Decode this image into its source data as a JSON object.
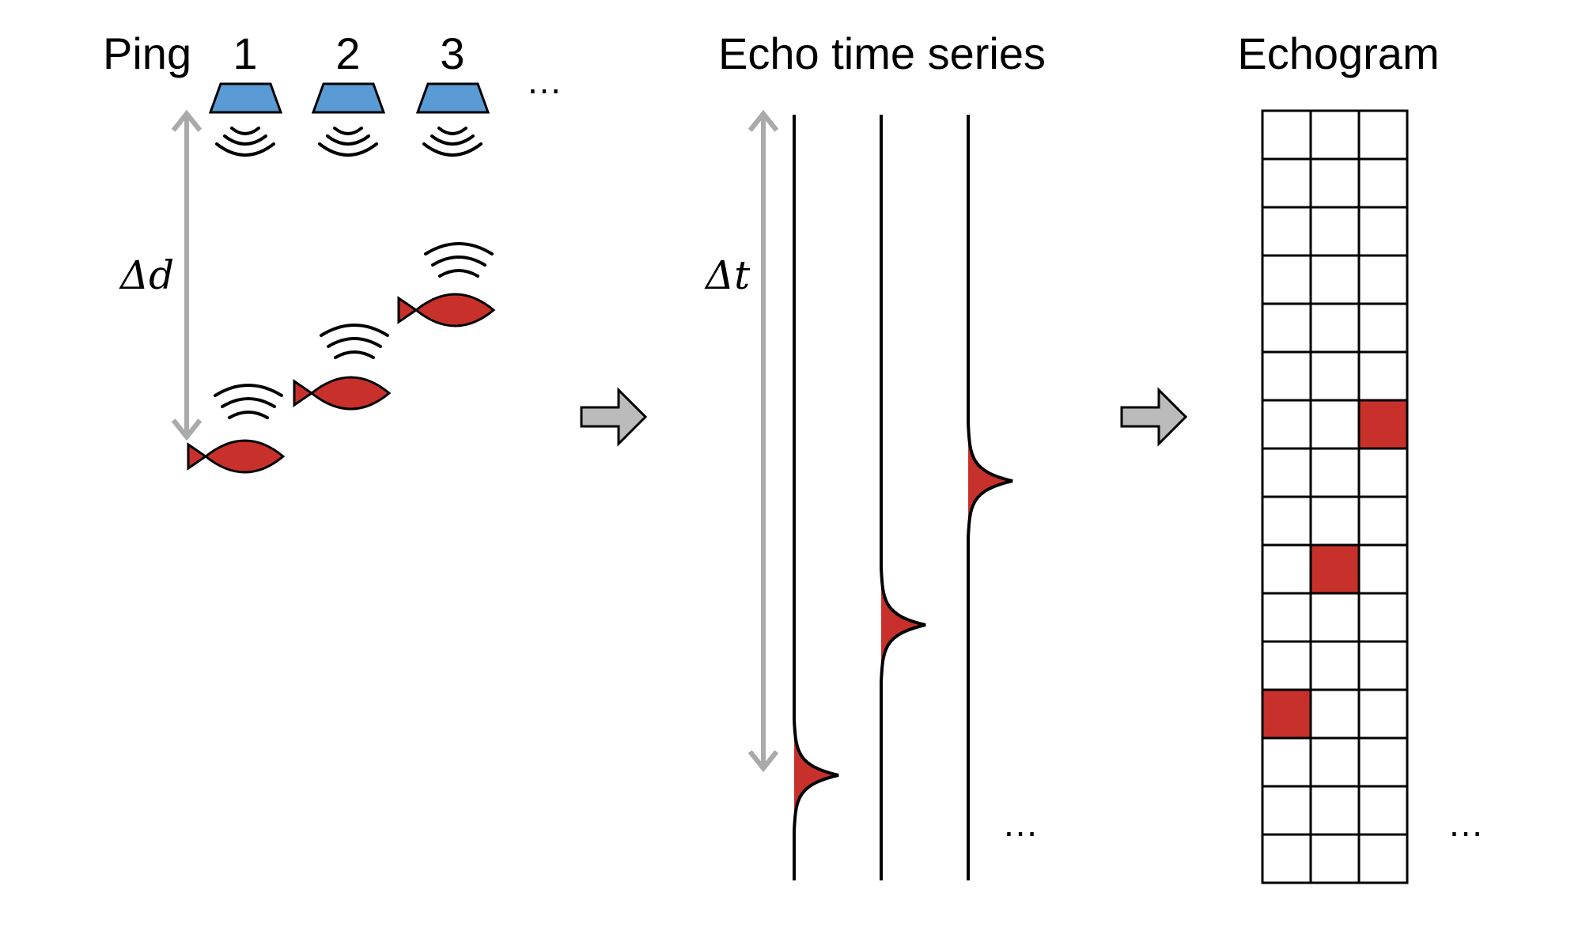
{
  "labels": {
    "ping": "Ping",
    "ping_numbers": [
      "1",
      "2",
      "3"
    ],
    "echo_time_series": "Echo time series",
    "echogram": "Echogram",
    "delta_d": "Δd",
    "delta_t": "Δt",
    "ellipsis": "…"
  },
  "echogram": {
    "rows": 16,
    "cols": 3,
    "filled_cells": [
      {
        "ping": 1,
        "row": 13
      },
      {
        "ping": 2,
        "row": 10
      },
      {
        "ping": 3,
        "row": 7
      }
    ]
  },
  "colors": {
    "transducer": "#5b9bd5",
    "fish": "#c8312b",
    "echo_peak": "#c8312b",
    "cell_fill": "#c8312b",
    "arrow_gray": "#bbbbbb",
    "dim_arrow": "#aaaaaa",
    "line": "#000000"
  },
  "icons": {
    "transducer": "transducer-icon",
    "sound_wave": "sound-wave-icon",
    "fish": "fish-icon",
    "flow_arrow": "right-arrow-icon"
  }
}
